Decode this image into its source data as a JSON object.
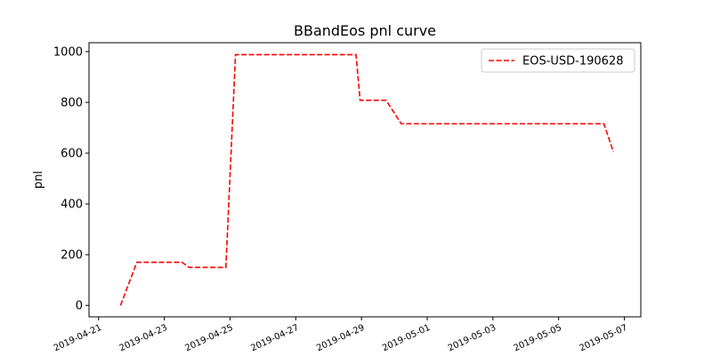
{
  "chart_data": {
    "type": "line",
    "title": "BBandEos pnl curve",
    "xlabel": "",
    "ylabel": "pnl",
    "xlim": [
      "2019-04-20T17:00",
      "2019-05-07T12:00"
    ],
    "ylim": [
      -45,
      1035
    ],
    "yticks": [
      0,
      200,
      400,
      600,
      800,
      1000
    ],
    "xticks": [
      "2019-04-21",
      "2019-04-23",
      "2019-04-25",
      "2019-04-27",
      "2019-04-29",
      "2019-05-01",
      "2019-05-03",
      "2019-05-05",
      "2019-05-07"
    ],
    "grid": false,
    "legend": {
      "position": "top-right"
    },
    "series": [
      {
        "name": "EOS-USD-190628",
        "color": "#ff0000",
        "line_style": "dashed",
        "x": [
          "2019-04-21T16:00",
          "2019-04-22T04:00",
          "2019-04-23T13:00",
          "2019-04-23T18:00",
          "2019-04-24T21:00",
          "2019-04-25T04:00",
          "2019-04-28T20:00",
          "2019-04-28T23:00",
          "2019-04-29T18:00",
          "2019-04-30T05:00",
          "2019-05-06T09:00",
          "2019-05-06T16:00"
        ],
        "y": [
          0,
          170,
          170,
          150,
          150,
          988,
          988,
          808,
          808,
          716,
          716,
          605
        ]
      }
    ]
  }
}
